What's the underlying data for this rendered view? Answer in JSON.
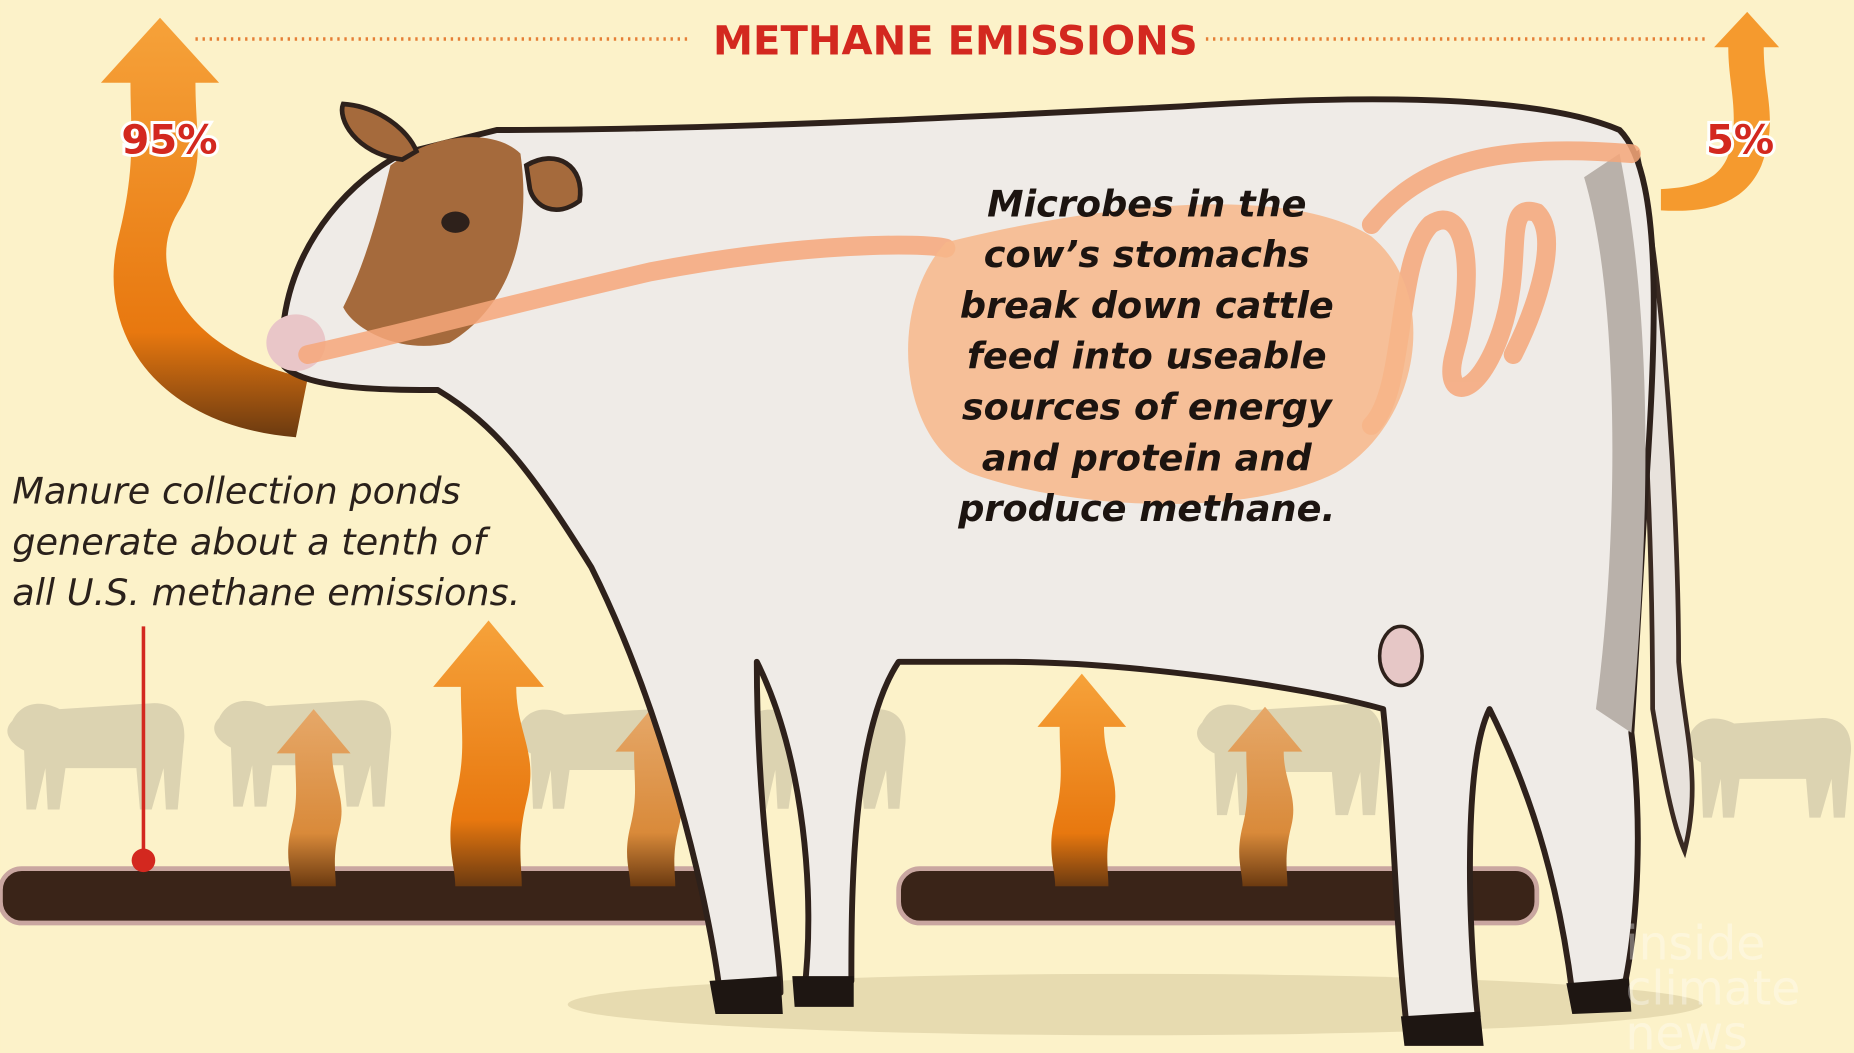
{
  "header": {
    "title": "METHANE EMISSIONS"
  },
  "labels": {
    "front": "95%",
    "rear": "5%"
  },
  "callouts": {
    "stomach": [
      "Microbes in the",
      "cow’s stomachs",
      "break down cattle",
      "feed into useable",
      "sources of energy",
      "and protein and",
      "produce methane."
    ],
    "manure": [
      "Manure collection ponds",
      "generate about a tenth of",
      "all U.S. methane emissions."
    ]
  },
  "watermark": [
    "inside",
    "climate",
    "news"
  ]
}
